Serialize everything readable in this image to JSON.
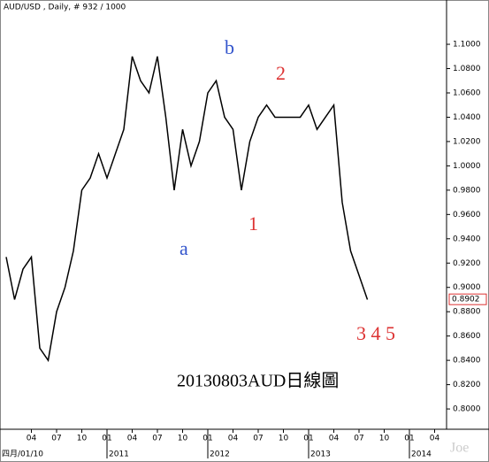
{
  "chart_data": {
    "type": "line",
    "title": "AUD/USD , Daily, # 932 / 1000",
    "subtitle": "20130803AUD日線圖",
    "watermark": "Joe",
    "start_label": "四月/01/10",
    "x": [
      "2010-01",
      "2010-02",
      "2010-03",
      "2010-04",
      "2010-05",
      "2010-06",
      "2010-07",
      "2010-08",
      "2010-09",
      "2010-10",
      "2010-11",
      "2010-12",
      "2011-01",
      "2011-02",
      "2011-03",
      "2011-04",
      "2011-05",
      "2011-06",
      "2011-07",
      "2011-08",
      "2011-09",
      "2011-10",
      "2011-11",
      "2011-12",
      "2012-01",
      "2012-02",
      "2012-03",
      "2012-04",
      "2012-05",
      "2012-06",
      "2012-07",
      "2012-08",
      "2012-09",
      "2012-10",
      "2012-11",
      "2012-12",
      "2013-01",
      "2013-02",
      "2013-03",
      "2013-04",
      "2013-05",
      "2013-06",
      "2013-07",
      "2013-08"
    ],
    "series": [
      {
        "name": "AUD/USD",
        "color": "#000000",
        "values": [
          0.925,
          0.89,
          0.915,
          0.925,
          0.85,
          0.84,
          0.88,
          0.9,
          0.93,
          0.98,
          0.99,
          1.01,
          0.99,
          1.01,
          1.03,
          1.09,
          1.07,
          1.06,
          1.09,
          1.04,
          0.98,
          1.03,
          1.0,
          1.02,
          1.06,
          1.07,
          1.04,
          1.03,
          0.98,
          1.02,
          1.04,
          1.05,
          1.04,
          1.04,
          1.04,
          1.04,
          1.05,
          1.03,
          1.04,
          1.05,
          0.97,
          0.93,
          0.91,
          0.89
        ]
      }
    ],
    "ylim": [
      0.7833,
      1.1328
    ],
    "yticks": [
      {
        "value": 0.8,
        "label": "0.8000"
      },
      {
        "value": 0.82,
        "label": "0.8200"
      },
      {
        "value": 0.84,
        "label": "0.8400"
      },
      {
        "value": 0.86,
        "label": "0.8600"
      },
      {
        "value": 0.88,
        "label": "0.8800"
      },
      {
        "value": 0.9,
        "label": "0.9000"
      },
      {
        "value": 0.92,
        "label": "0.9200"
      },
      {
        "value": 0.94,
        "label": "0.9400"
      },
      {
        "value": 0.96,
        "label": "0.9600"
      },
      {
        "value": 0.98,
        "label": "0.9800"
      },
      {
        "value": 1.0,
        "label": "1.0000"
      },
      {
        "value": 1.02,
        "label": "1.0200"
      },
      {
        "value": 1.04,
        "label": "1.0400"
      },
      {
        "value": 1.06,
        "label": "1.0600"
      },
      {
        "value": 1.08,
        "label": "1.0800"
      },
      {
        "value": 1.1,
        "label": "1.1000"
      }
    ],
    "last_value": {
      "value": 0.8902,
      "label": "0.8902"
    },
    "xticks": [
      {
        "value": "2010-04",
        "label": "04"
      },
      {
        "value": "2010-07",
        "label": "07"
      },
      {
        "value": "2010-10",
        "label": "10"
      },
      {
        "value": "2011-01",
        "label": "01"
      },
      {
        "value": "2011-04",
        "label": "04"
      },
      {
        "value": "2011-07",
        "label": "07"
      },
      {
        "value": "2011-10",
        "label": "10"
      },
      {
        "value": "2012-01",
        "label": "01"
      },
      {
        "value": "2012-04",
        "label": "04"
      },
      {
        "value": "2012-07",
        "label": "07"
      },
      {
        "value": "2012-10",
        "label": "10"
      },
      {
        "value": "2013-01",
        "label": "01"
      },
      {
        "value": "2013-04",
        "label": "04"
      },
      {
        "value": "2013-07",
        "label": "07"
      },
      {
        "value": "2013-10",
        "label": "10"
      },
      {
        "value": "2014-01",
        "label": "01"
      },
      {
        "value": "2014-04",
        "label": "04"
      }
    ],
    "year_labels": [
      {
        "value": "2011-01",
        "label": "2011"
      },
      {
        "value": "2012-01",
        "label": "2012"
      },
      {
        "value": "2013-01",
        "label": "2013"
      },
      {
        "value": "2014-01",
        "label": "2014"
      }
    ],
    "annotations": [
      "a",
      "b",
      "1",
      "2",
      "3 4 5"
    ]
  }
}
